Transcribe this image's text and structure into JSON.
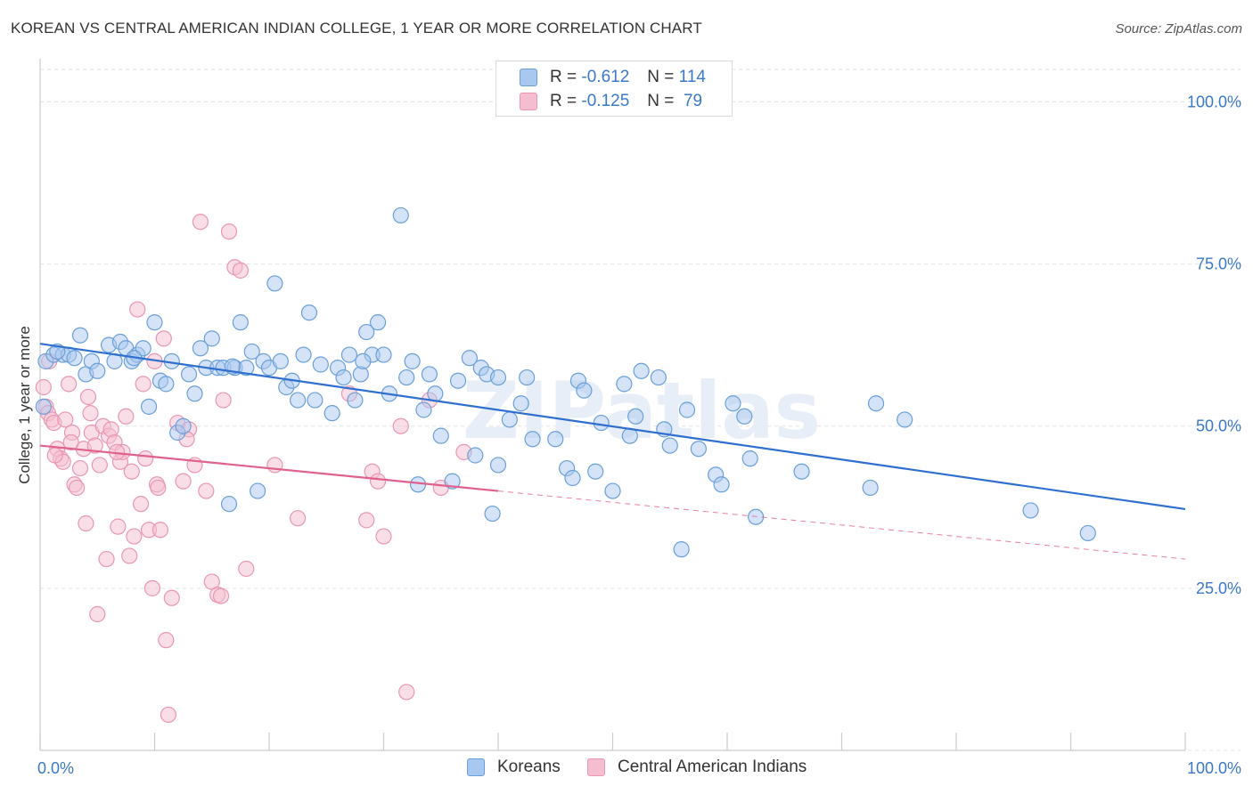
{
  "title": "KOREAN VS CENTRAL AMERICAN INDIAN COLLEGE, 1 YEAR OR MORE CORRELATION CHART",
  "source": "Source: ZipAtlas.com",
  "watermark": "ZIPatlas",
  "legend": {
    "korean": {
      "r_label": "R = ",
      "r_value": "-0.612",
      "n_label": "N = ",
      "n_value": "114"
    },
    "central": {
      "r_label": "R = ",
      "r_value": "-0.125",
      "n_label": "N = ",
      "n_value": "79"
    }
  },
  "bottom_legend": {
    "korean": "Koreans",
    "central": "Central American Indians"
  },
  "colors": {
    "korean_fill": "#a9c8ef",
    "korean_stroke": "#6a9fd8",
    "korean_line": "#2f6fcf",
    "central_fill": "#f5bdd0",
    "central_stroke": "#e896b3",
    "central_line": "#e0608e",
    "tick_text": "#3a78c9",
    "grid": "#e3e3e3"
  },
  "chart_data": {
    "type": "scatter",
    "title": "KOREAN VS CENTRAL AMERICAN INDIAN COLLEGE, 1 YEAR OR MORE CORRELATION CHART",
    "xlabel": "",
    "ylabel": "College, 1 year or more",
    "xlim": [
      0,
      100
    ],
    "ylim": [
      0,
      105
    ],
    "x_tick_labels": [
      "0.0%",
      "100.0%"
    ],
    "y_ticks": [
      25,
      50,
      75,
      100
    ],
    "y_tick_labels": [
      "25.0%",
      "50.0%",
      "75.0%",
      "100.0%"
    ],
    "grid": true,
    "legend_position": "top-center",
    "series": [
      {
        "name": "Koreans",
        "r": -0.612,
        "n": 114,
        "trend": {
          "x": [
            0,
            100
          ],
          "y": [
            62.7,
            37.2
          ],
          "style": "solid"
        },
        "points": [
          [
            0.5,
            60.0
          ],
          [
            1.2,
            61.0
          ],
          [
            2.0,
            61.0
          ],
          [
            2.5,
            61.0
          ],
          [
            3.5,
            64.0
          ],
          [
            4.0,
            58.0
          ],
          [
            4.5,
            60.0
          ],
          [
            5.0,
            58.5
          ],
          [
            6.0,
            62.5
          ],
          [
            6.5,
            60.0
          ],
          [
            7.0,
            63.0
          ],
          [
            7.5,
            62.0
          ],
          [
            8.0,
            60.0
          ],
          [
            8.5,
            61.0
          ],
          [
            9.0,
            62.0
          ],
          [
            9.5,
            53.0
          ],
          [
            10.0,
            66.0
          ],
          [
            10.5,
            57.0
          ],
          [
            11.0,
            56.5
          ],
          [
            11.5,
            60.0
          ],
          [
            12.0,
            49.0
          ],
          [
            12.5,
            50.0
          ],
          [
            13.0,
            58.0
          ],
          [
            13.5,
            55.0
          ],
          [
            14.0,
            62.0
          ],
          [
            14.5,
            59.0
          ],
          [
            15.0,
            63.5
          ],
          [
            15.5,
            59.0
          ],
          [
            16.0,
            59.0
          ],
          [
            16.5,
            38.0
          ],
          [
            17.0,
            59.0
          ],
          [
            17.5,
            66.0
          ],
          [
            18.0,
            59.0
          ],
          [
            18.5,
            61.5
          ],
          [
            19.0,
            40.0
          ],
          [
            19.5,
            60.0
          ],
          [
            20.0,
            59.0
          ],
          [
            20.5,
            72.0
          ],
          [
            21.0,
            60.0
          ],
          [
            21.5,
            56.0
          ],
          [
            22.0,
            57.0
          ],
          [
            23.0,
            61.0
          ],
          [
            23.5,
            67.5
          ],
          [
            24.0,
            54.0
          ],
          [
            24.5,
            59.5
          ],
          [
            25.5,
            52.0
          ],
          [
            26.0,
            59.0
          ],
          [
            26.5,
            57.5
          ],
          [
            27.0,
            61.0
          ],
          [
            27.5,
            54.0
          ],
          [
            28.0,
            58.0
          ],
          [
            28.5,
            64.5
          ],
          [
            29.0,
            61.0
          ],
          [
            29.5,
            66.0
          ],
          [
            30.0,
            61.0
          ],
          [
            30.5,
            55.0
          ],
          [
            31.5,
            82.5
          ],
          [
            32.0,
            57.5
          ],
          [
            32.5,
            60.0
          ],
          [
            33.0,
            41.0
          ],
          [
            33.5,
            52.5
          ],
          [
            34.0,
            58.0
          ],
          [
            34.5,
            55.0
          ],
          [
            35.0,
            48.5
          ],
          [
            36.0,
            41.5
          ],
          [
            36.5,
            57.0
          ],
          [
            37.5,
            60.5
          ],
          [
            38.0,
            45.5
          ],
          [
            38.5,
            59.0
          ],
          [
            39.0,
            58.0
          ],
          [
            39.5,
            36.5
          ],
          [
            40.0,
            44.0
          ],
          [
            41.0,
            51.0
          ],
          [
            42.0,
            53.5
          ],
          [
            42.5,
            57.5
          ],
          [
            43.0,
            48.0
          ],
          [
            45.0,
            48.0
          ],
          [
            46.0,
            43.5
          ],
          [
            46.5,
            42.0
          ],
          [
            47.0,
            57.0
          ],
          [
            47.5,
            55.5
          ],
          [
            48.5,
            43.0
          ],
          [
            49.0,
            50.5
          ],
          [
            50.0,
            40.0
          ],
          [
            51.0,
            56.5
          ],
          [
            51.5,
            48.5
          ],
          [
            52.0,
            51.5
          ],
          [
            52.5,
            58.5
          ],
          [
            54.0,
            57.5
          ],
          [
            54.5,
            49.5
          ],
          [
            55.0,
            47.0
          ],
          [
            56.0,
            31.0
          ],
          [
            56.5,
            52.5
          ],
          [
            57.5,
            46.5
          ],
          [
            59.0,
            42.5
          ],
          [
            59.5,
            41.0
          ],
          [
            60.5,
            53.5
          ],
          [
            61.5,
            51.5
          ],
          [
            62.0,
            45.0
          ],
          [
            62.5,
            36.0
          ],
          [
            66.5,
            43.0
          ],
          [
            72.5,
            40.5
          ],
          [
            73.0,
            53.5
          ],
          [
            75.5,
            51.0
          ],
          [
            86.5,
            37.0
          ],
          [
            91.5,
            33.5
          ],
          [
            0.3,
            53.0
          ],
          [
            1.5,
            61.5
          ],
          [
            3.0,
            60.5
          ],
          [
            8.2,
            60.5
          ],
          [
            16.8,
            59.2
          ],
          [
            22.5,
            54.0
          ],
          [
            28.2,
            60.0
          ],
          [
            40.0,
            57.5
          ]
        ]
      },
      {
        "name": "Central American Indians",
        "r": -0.125,
        "n": 79,
        "trend": {
          "x": [
            0,
            40
          ],
          "y": [
            47.0,
            40.0
          ],
          "style": "solid",
          "dashed_to": [
            100,
            29.5
          ]
        },
        "points": [
          [
            0.3,
            56.0
          ],
          [
            0.5,
            53.0
          ],
          [
            0.7,
            52.0
          ],
          [
            1.0,
            51.0
          ],
          [
            1.2,
            50.5
          ],
          [
            1.5,
            46.5
          ],
          [
            1.8,
            45.0
          ],
          [
            2.0,
            44.5
          ],
          [
            2.2,
            51.0
          ],
          [
            2.5,
            56.5
          ],
          [
            2.8,
            49.0
          ],
          [
            3.0,
            41.0
          ],
          [
            3.2,
            40.5
          ],
          [
            3.5,
            43.5
          ],
          [
            3.8,
            46.5
          ],
          [
            4.0,
            35.0
          ],
          [
            4.2,
            54.5
          ],
          [
            4.5,
            49.0
          ],
          [
            4.8,
            47.0
          ],
          [
            5.0,
            21.0
          ],
          [
            5.2,
            44.0
          ],
          [
            5.5,
            50.0
          ],
          [
            5.8,
            29.5
          ],
          [
            6.0,
            48.5
          ],
          [
            6.2,
            49.5
          ],
          [
            6.5,
            47.5
          ],
          [
            6.8,
            34.5
          ],
          [
            7.0,
            44.5
          ],
          [
            7.2,
            46.0
          ],
          [
            7.5,
            51.5
          ],
          [
            7.8,
            30.0
          ],
          [
            8.0,
            43.0
          ],
          [
            8.2,
            33.0
          ],
          [
            8.5,
            68.0
          ],
          [
            8.8,
            38.0
          ],
          [
            9.0,
            56.5
          ],
          [
            9.2,
            45.0
          ],
          [
            9.5,
            34.0
          ],
          [
            9.8,
            25.0
          ],
          [
            10.0,
            60.0
          ],
          [
            10.2,
            41.0
          ],
          [
            10.5,
            34.0
          ],
          [
            10.8,
            63.5
          ],
          [
            11.0,
            17.0
          ],
          [
            11.2,
            5.5
          ],
          [
            11.5,
            23.5
          ],
          [
            12.0,
            50.5
          ],
          [
            12.5,
            41.5
          ],
          [
            13.0,
            49.5
          ],
          [
            13.5,
            44.0
          ],
          [
            14.0,
            81.5
          ],
          [
            14.5,
            40.0
          ],
          [
            15.0,
            26.0
          ],
          [
            15.5,
            24.0
          ],
          [
            16.0,
            54.0
          ],
          [
            16.5,
            80.0
          ],
          [
            17.0,
            74.5
          ],
          [
            17.5,
            74.0
          ],
          [
            18.0,
            28.0
          ],
          [
            20.5,
            44.0
          ],
          [
            22.5,
            35.8
          ],
          [
            27.0,
            55.0
          ],
          [
            28.5,
            35.5
          ],
          [
            29.0,
            43.0
          ],
          [
            29.5,
            41.5
          ],
          [
            30.0,
            33.0
          ],
          [
            31.5,
            50.0
          ],
          [
            32.0,
            9.0
          ],
          [
            34.0,
            54.0
          ],
          [
            35.0,
            40.5
          ],
          [
            37.0,
            46.0
          ],
          [
            0.8,
            60.0
          ],
          [
            1.3,
            45.5
          ],
          [
            2.7,
            47.5
          ],
          [
            6.7,
            46.0
          ],
          [
            12.8,
            48.0
          ],
          [
            15.8,
            23.8
          ],
          [
            10.3,
            40.5
          ],
          [
            4.4,
            52.0
          ]
        ]
      }
    ]
  }
}
